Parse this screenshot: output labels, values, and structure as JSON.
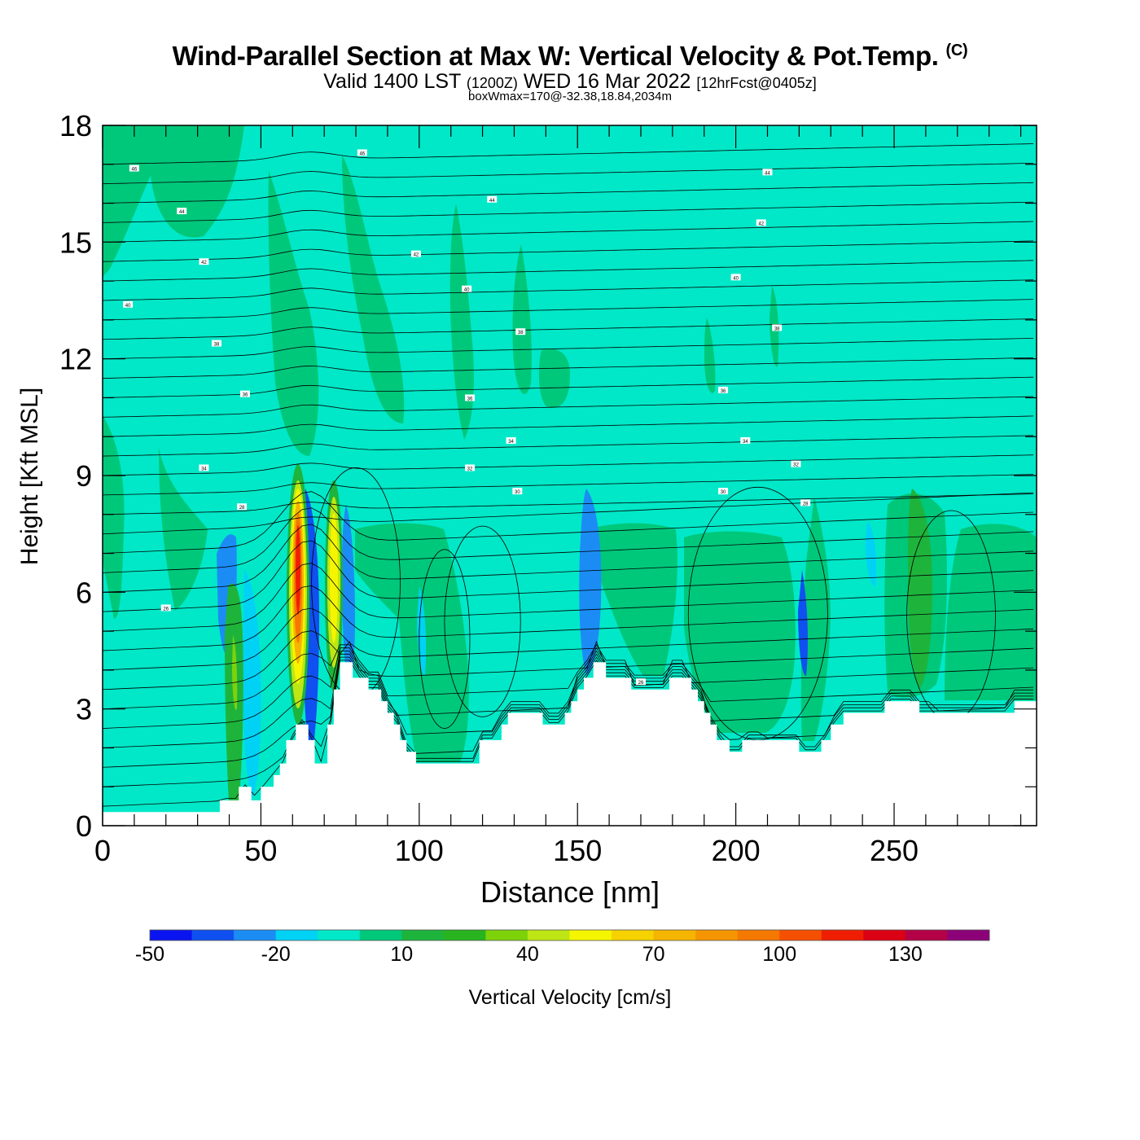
{
  "title": {
    "main": "Wind-Parallel Section at Max W: Vertical Velocity & Pot.Temp.",
    "copyright": "(C)",
    "valid_prefix": "Valid 1400 LST",
    "valid_utc": "(1200Z)",
    "valid_date": "WED 16 Mar 2022",
    "forecast": "[12hrFcst@0405z]",
    "boxwmax": "boxWmax=170@-32.38,18.84,2034m"
  },
  "chart_data": {
    "type": "heatmap",
    "xlabel": "Distance [nm]",
    "ylabel": "Height [Kft MSL]",
    "xlim": [
      0,
      295
    ],
    "ylim": [
      0,
      18
    ],
    "x_ticks": [
      "0",
      "50",
      "100",
      "150",
      "200",
      "250"
    ],
    "y_ticks": [
      "0",
      "3",
      "6",
      "9",
      "12",
      "15",
      "18"
    ],
    "colorbar": {
      "label": "Vertical Velocity [cm/s]",
      "tick_labels": [
        "-50",
        "-20",
        "10",
        "40",
        "70",
        "100",
        "130"
      ],
      "levels": [
        -50,
        -40,
        -30,
        -20,
        -10,
        0,
        10,
        20,
        30,
        40,
        50,
        60,
        70,
        80,
        90,
        100,
        110,
        120,
        130,
        140,
        150
      ],
      "colors": [
        "#0a14f0",
        "#1050f0",
        "#1c8cf5",
        "#00d2f5",
        "#00e8c8",
        "#00c87a",
        "#1eb43c",
        "#28b41e",
        "#7dd20a",
        "#bee614",
        "#f5f500",
        "#f5d200",
        "#f5b400",
        "#f59600",
        "#f57800",
        "#f55000",
        "#f01e00",
        "#dc0014",
        "#b40046",
        "#8c0078"
      ]
    },
    "background_w_color": "#00e8c8",
    "terrain_kft": [
      [
        0,
        0.35
      ],
      [
        20,
        0.35
      ],
      [
        37,
        0.35
      ],
      [
        37,
        0.65
      ],
      [
        43,
        0.65
      ],
      [
        43,
        1
      ],
      [
        47,
        1
      ],
      [
        47,
        0.65
      ],
      [
        50,
        0.65
      ],
      [
        50,
        1
      ],
      [
        54,
        1
      ],
      [
        54,
        1.3
      ],
      [
        56,
        1.3
      ],
      [
        56,
        1.6
      ],
      [
        58,
        1.6
      ],
      [
        58,
        2.2
      ],
      [
        61,
        2.2
      ],
      [
        61,
        2.6
      ],
      [
        65,
        2.6
      ],
      [
        65,
        2.2
      ],
      [
        67,
        2.2
      ],
      [
        67,
        1.6
      ],
      [
        71,
        1.6
      ],
      [
        71,
        2.6
      ],
      [
        73,
        2.6
      ],
      [
        73,
        3.5
      ],
      [
        75,
        3.5
      ],
      [
        75,
        4.2
      ],
      [
        79,
        4.2
      ],
      [
        79,
        3.8
      ],
      [
        84,
        3.8
      ],
      [
        84,
        3.5
      ],
      [
        88,
        3.5
      ],
      [
        88,
        3.2
      ],
      [
        90,
        3.2
      ],
      [
        90,
        2.9
      ],
      [
        92,
        2.9
      ],
      [
        92,
        2.6
      ],
      [
        94,
        2.6
      ],
      [
        94,
        2.2
      ],
      [
        96,
        2.2
      ],
      [
        96,
        1.9
      ],
      [
        99,
        1.9
      ],
      [
        99,
        1.6
      ],
      [
        119,
        1.6
      ],
      [
        119,
        2.2
      ],
      [
        126,
        2.2
      ],
      [
        126,
        2.6
      ],
      [
        128,
        2.6
      ],
      [
        128,
        2.9
      ],
      [
        139,
        2.9
      ],
      [
        139,
        2.6
      ],
      [
        146,
        2.6
      ],
      [
        146,
        2.9
      ],
      [
        148,
        2.9
      ],
      [
        148,
        3.2
      ],
      [
        150,
        3.2
      ],
      [
        150,
        3.5
      ],
      [
        152,
        3.5
      ],
      [
        152,
        3.8
      ],
      [
        155,
        3.8
      ],
      [
        155,
        4.2
      ],
      [
        159,
        4.2
      ],
      [
        159,
        3.8
      ],
      [
        167,
        3.8
      ],
      [
        167,
        3.5
      ],
      [
        179,
        3.5
      ],
      [
        179,
        3.8
      ],
      [
        186,
        3.8
      ],
      [
        186,
        3.5
      ],
      [
        188,
        3.5
      ],
      [
        188,
        3.2
      ],
      [
        190,
        3.2
      ],
      [
        190,
        2.9
      ],
      [
        192,
        2.9
      ],
      [
        192,
        2.6
      ],
      [
        194,
        2.6
      ],
      [
        194,
        2.2
      ],
      [
        198,
        2.2
      ],
      [
        198,
        1.9
      ],
      [
        202,
        1.9
      ],
      [
        202,
        2.2
      ],
      [
        220,
        2.2
      ],
      [
        220,
        1.9
      ],
      [
        227,
        1.9
      ],
      [
        227,
        2.2
      ],
      [
        230,
        2.2
      ],
      [
        230,
        2.6
      ],
      [
        234,
        2.6
      ],
      [
        234,
        2.9
      ],
      [
        247,
        2.9
      ],
      [
        247,
        3.2
      ],
      [
        258,
        3.2
      ],
      [
        258,
        2.9
      ],
      [
        288,
        2.9
      ],
      [
        288,
        3.2
      ],
      [
        295,
        3.2
      ]
    ],
    "theta_label_values": [
      "46",
      "44",
      "42",
      "40",
      "38",
      "36",
      "34",
      "32",
      "30",
      "28",
      "26"
    ]
  }
}
